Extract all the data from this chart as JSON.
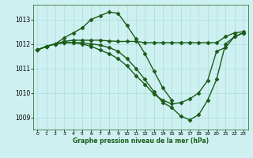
{
  "title": "Graphe pression niveau de la mer (hPa)",
  "bg_color": "#cff0f0",
  "grid_color": "#aadddd",
  "line_color": "#1a5c1a",
  "marker": "D",
  "markersize": 2.5,
  "linewidth": 1.0,
  "xlim": [
    -0.5,
    23.5
  ],
  "ylim": [
    1008.5,
    1013.6
  ],
  "yticks": [
    1009,
    1010,
    1011,
    1012,
    1013
  ],
  "xticks": [
    0,
    1,
    2,
    3,
    4,
    5,
    6,
    7,
    8,
    9,
    10,
    11,
    12,
    13,
    14,
    15,
    16,
    17,
    18,
    19,
    20,
    21,
    22,
    23
  ],
  "series": [
    {
      "x": [
        0,
        1,
        2,
        3,
        4,
        5,
        6,
        7,
        8,
        9,
        10,
        11,
        12,
        13,
        14,
        15
      ],
      "y": [
        1011.75,
        1011.9,
        1012.0,
        1012.25,
        1012.45,
        1012.65,
        1013.0,
        1013.15,
        1013.3,
        1013.25,
        1012.75,
        1012.2,
        1011.6,
        1010.9,
        1010.2,
        1009.7
      ]
    },
    {
      "x": [
        0,
        1,
        2,
        3,
        4,
        5,
        6,
        7,
        8,
        9,
        10,
        11,
        12,
        13,
        14,
        15,
        16,
        17,
        18,
        19,
        20,
        21,
        22,
        23
      ],
      "y": [
        1011.75,
        1011.9,
        1012.0,
        1012.1,
        1012.15,
        1012.15,
        1012.15,
        1012.15,
        1012.12,
        1012.1,
        1012.1,
        1012.1,
        1012.05,
        1012.05,
        1012.05,
        1012.05,
        1012.05,
        1012.05,
        1012.05,
        1012.05,
        1012.05,
        1012.3,
        1012.45,
        1012.5
      ]
    },
    {
      "x": [
        0,
        1,
        2,
        3,
        4,
        5,
        6,
        7,
        8,
        9,
        10,
        11,
        12,
        13,
        14,
        15,
        16,
        17,
        18,
        19,
        20,
        21,
        22,
        23
      ],
      "y": [
        1011.75,
        1011.9,
        1012.0,
        1012.05,
        1012.05,
        1012.05,
        1012.0,
        1011.95,
        1011.85,
        1011.7,
        1011.4,
        1011.0,
        1010.55,
        1010.05,
        1009.6,
        1009.4,
        1009.05,
        1008.9,
        1009.1,
        1009.7,
        1010.55,
        1012.0,
        1012.3,
        1012.45
      ]
    },
    {
      "x": [
        0,
        1,
        2,
        3,
        4,
        5,
        6,
        7,
        8,
        9,
        10,
        11,
        12,
        13,
        14,
        15,
        16,
        17,
        18,
        19,
        20,
        21,
        22,
        23
      ],
      "y": [
        1011.75,
        1011.9,
        1012.0,
        1012.05,
        1012.05,
        1012.0,
        1011.9,
        1011.75,
        1011.6,
        1011.4,
        1011.1,
        1010.7,
        1010.35,
        1009.95,
        1009.7,
        1009.55,
        1009.6,
        1009.75,
        1010.0,
        1010.5,
        1011.7,
        1011.85,
        1012.3,
        1012.45
      ]
    }
  ]
}
